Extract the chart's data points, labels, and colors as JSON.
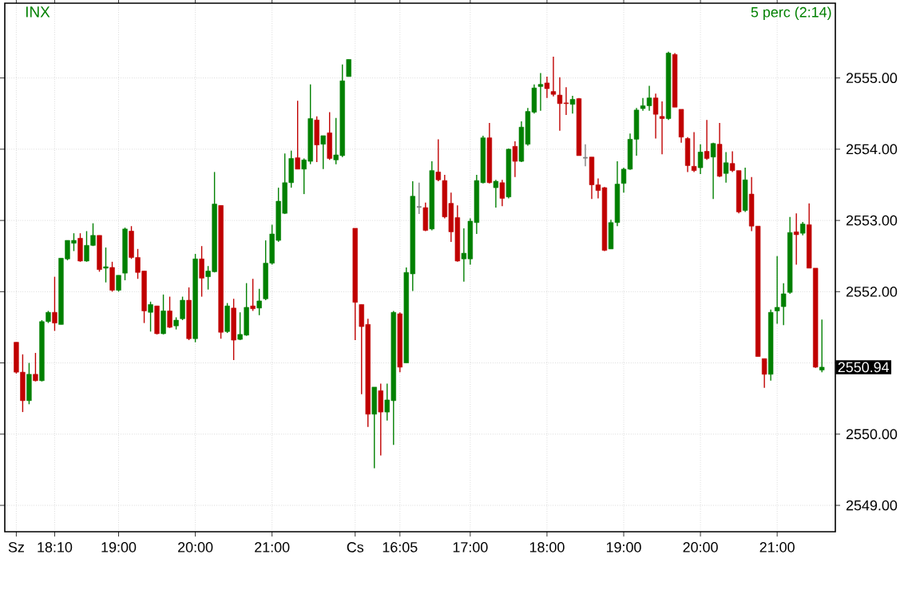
{
  "chart_data": {
    "type": "candlestick",
    "title": "INX",
    "subtitle": "5 perc (2:14)",
    "categories": [
      "Sz",
      null,
      null,
      null,
      null,
      null,
      "18:10",
      null,
      null,
      null,
      null,
      null,
      null,
      null,
      null,
      null,
      "19:00",
      null,
      null,
      null,
      null,
      null,
      null,
      null,
      null,
      null,
      null,
      null,
      "20:00",
      null,
      null,
      null,
      null,
      null,
      null,
      null,
      null,
      null,
      null,
      null,
      "21:00",
      null,
      null,
      null,
      null,
      null,
      null,
      null,
      null,
      null,
      null,
      null,
      null,
      "Cs",
      null,
      null,
      null,
      null,
      null,
      null,
      "16:05",
      null,
      null,
      null,
      null,
      null,
      null,
      null,
      null,
      null,
      null,
      "17:00",
      null,
      null,
      null,
      null,
      null,
      null,
      null,
      null,
      null,
      null,
      null,
      "18:00",
      null,
      null,
      null,
      null,
      null,
      null,
      null,
      null,
      null,
      null,
      null,
      "19:00",
      null,
      null,
      null,
      null,
      null,
      null,
      null,
      null,
      null,
      null,
      null,
      "20:00",
      null,
      null,
      null,
      null,
      null,
      null,
      null,
      null,
      null,
      null,
      null,
      "21:00",
      null,
      null,
      null,
      null,
      null,
      null,
      null
    ],
    "ohlc": [
      [
        2551.29,
        2551.29,
        2550.85,
        2550.87
      ],
      [
        2550.87,
        2551.12,
        2550.31,
        2550.47
      ],
      [
        2550.47,
        2551.0,
        2550.42,
        2550.84
      ],
      [
        2550.84,
        2551.14,
        2550.74,
        2550.75
      ],
      [
        2550.75,
        2551.6,
        2550.74,
        2551.58
      ],
      [
        2551.58,
        2551.73,
        2551.56,
        2551.71
      ],
      [
        2551.71,
        2552.21,
        2551.45,
        2551.56
      ],
      [
        2551.54,
        2552.47,
        2551.54,
        2552.47
      ],
      [
        2552.46,
        2552.72,
        2552.44,
        2552.72
      ],
      [
        2552.68,
        2552.82,
        2552.57,
        2552.72
      ],
      [
        2552.75,
        2552.82,
        2552.42,
        2552.43
      ],
      [
        2552.43,
        2552.85,
        2552.42,
        2552.65
      ],
      [
        2552.65,
        2552.96,
        2552.64,
        2552.79
      ],
      [
        2552.79,
        2552.79,
        2552.28,
        2552.31
      ],
      [
        2552.33,
        2552.62,
        2552.13,
        2552.35
      ],
      [
        2552.34,
        2552.42,
        2552.0,
        2552.02
      ],
      [
        2552.02,
        2552.23,
        2552.0,
        2552.23
      ],
      [
        2552.26,
        2552.9,
        2552.16,
        2552.88
      ],
      [
        2552.85,
        2552.92,
        2552.46,
        2552.48
      ],
      [
        2552.48,
        2552.6,
        2552.18,
        2552.27
      ],
      [
        2552.29,
        2552.29,
        2551.56,
        2551.73
      ],
      [
        2551.71,
        2551.86,
        2551.44,
        2551.82
      ],
      [
        2551.8,
        2551.8,
        2551.4,
        2551.41
      ],
      [
        2551.41,
        2551.96,
        2551.4,
        2551.73
      ],
      [
        2551.73,
        2551.93,
        2551.49,
        2551.5
      ],
      [
        2551.52,
        2551.64,
        2551.47,
        2551.6
      ],
      [
        2551.62,
        2551.93,
        2551.6,
        2551.88
      ],
      [
        2551.88,
        2552.06,
        2551.32,
        2551.34
      ],
      [
        2551.34,
        2552.53,
        2551.29,
        2552.46
      ],
      [
        2552.46,
        2552.64,
        2551.93,
        2552.19
      ],
      [
        2552.21,
        2552.36,
        2552.03,
        2552.29
      ],
      [
        2552.28,
        2553.68,
        2552.27,
        2553.23
      ],
      [
        2553.21,
        2553.21,
        2551.34,
        2551.43
      ],
      [
        2551.44,
        2551.84,
        2551.42,
        2551.8
      ],
      [
        2551.77,
        2551.9,
        2551.04,
        2551.32
      ],
      [
        2551.33,
        2551.71,
        2551.32,
        2551.4
      ],
      [
        2551.39,
        2552.12,
        2551.38,
        2551.78
      ],
      [
        2551.8,
        2552.18,
        2551.73,
        2551.76
      ],
      [
        2551.77,
        2552.04,
        2551.67,
        2551.87
      ],
      [
        2551.9,
        2552.72,
        2551.88,
        2552.4
      ],
      [
        2552.4,
        2552.94,
        2552.38,
        2552.81
      ],
      [
        2552.72,
        2553.46,
        2552.7,
        2553.27
      ],
      [
        2553.1,
        2553.94,
        2553.09,
        2553.53
      ],
      [
        2553.53,
        2553.98,
        2553.46,
        2553.87
      ],
      [
        2553.88,
        2554.68,
        2553.72,
        2553.72
      ],
      [
        2553.72,
        2553.87,
        2553.37,
        2553.85
      ],
      [
        2553.83,
        2554.91,
        2553.79,
        2554.43
      ],
      [
        2554.41,
        2554.46,
        2553.82,
        2554.06
      ],
      [
        2554.07,
        2554.19,
        2553.72,
        2554.19
      ],
      [
        2554.23,
        2554.52,
        2553.85,
        2553.87
      ],
      [
        2553.85,
        2554.44,
        2553.79,
        2553.92
      ],
      [
        2553.91,
        2555.19,
        2553.89,
        2554.96
      ],
      [
        2555.02,
        2555.26,
        2555.02,
        2555.26
      ],
      [
        2552.89,
        2552.89,
        2551.32,
        2551.85
      ],
      [
        2551.82,
        2551.82,
        2550.56,
        2551.51
      ],
      [
        2551.54,
        2551.62,
        2550.1,
        2550.28
      ],
      [
        2550.28,
        2550.66,
        2549.52,
        2550.66
      ],
      [
        2550.61,
        2550.71,
        2549.7,
        2550.31
      ],
      [
        2550.31,
        2550.71,
        2550.19,
        2550.48
      ],
      [
        2550.47,
        2551.73,
        2549.85,
        2551.71
      ],
      [
        2551.69,
        2551.71,
        2550.87,
        2550.94
      ],
      [
        2551.0,
        2552.34,
        2551.0,
        2552.27
      ],
      [
        2552.25,
        2553.55,
        2552.01,
        2553.34
      ],
      [
        2553.19,
        2553.53,
        2553.09,
        2553.19
      ],
      [
        2553.18,
        2553.25,
        2552.85,
        2552.86
      ],
      [
        2552.88,
        2553.83,
        2552.86,
        2553.7
      ],
      [
        2553.68,
        2554.14,
        2553.55,
        2553.57
      ],
      [
        2553.56,
        2553.64,
        2553.03,
        2553.05
      ],
      [
        2553.24,
        2553.39,
        2552.7,
        2552.84
      ],
      [
        2553.04,
        2553.21,
        2552.42,
        2552.43
      ],
      [
        2552.46,
        2552.89,
        2552.14,
        2552.54
      ],
      [
        2552.46,
        2553.03,
        2552.38,
        2552.99
      ],
      [
        2552.97,
        2553.64,
        2552.81,
        2553.56
      ],
      [
        2553.53,
        2554.19,
        2553.52,
        2554.16
      ],
      [
        2554.16,
        2554.37,
        2553.52,
        2553.53
      ],
      [
        2553.46,
        2553.57,
        2553.18,
        2553.55
      ],
      [
        2553.53,
        2553.57,
        2553.2,
        2553.31
      ],
      [
        2553.33,
        2554.01,
        2553.31,
        2554.0
      ],
      [
        2554.04,
        2554.11,
        2553.61,
        2553.83
      ],
      [
        2553.83,
        2554.39,
        2553.82,
        2554.31
      ],
      [
        2554.07,
        2554.58,
        2554.05,
        2554.53
      ],
      [
        2554.52,
        2554.91,
        2554.5,
        2554.86
      ],
      [
        2554.88,
        2555.07,
        2554.54,
        2554.91
      ],
      [
        2554.93,
        2555.02,
        2554.72,
        2554.85
      ],
      [
        2554.81,
        2555.3,
        2554.74,
        2554.77
      ],
      [
        2554.76,
        2555.01,
        2554.26,
        2554.64
      ],
      [
        2554.65,
        2554.87,
        2554.48,
        2554.64
      ],
      [
        2554.63,
        2554.75,
        2554.5,
        2554.7
      ],
      [
        2554.71,
        2554.72,
        2553.91,
        2553.91
      ],
      [
        2553.88,
        2554.07,
        2553.76,
        2553.88
      ],
      [
        2553.89,
        2553.89,
        2553.3,
        2553.5
      ],
      [
        2553.5,
        2553.59,
        2553.31,
        2553.42
      ],
      [
        2553.46,
        2553.47,
        2552.57,
        2552.58
      ],
      [
        2552.6,
        2553.01,
        2552.6,
        2552.97
      ],
      [
        2552.97,
        2553.83,
        2552.92,
        2553.51
      ],
      [
        2553.52,
        2553.74,
        2553.39,
        2553.72
      ],
      [
        2553.72,
        2554.22,
        2553.71,
        2554.14
      ],
      [
        2554.14,
        2554.58,
        2553.91,
        2554.55
      ],
      [
        2554.57,
        2554.72,
        2554.54,
        2554.61
      ],
      [
        2554.61,
        2554.89,
        2554.54,
        2554.72
      ],
      [
        2554.72,
        2554.78,
        2554.15,
        2554.49
      ],
      [
        2554.46,
        2554.67,
        2553.93,
        2554.43
      ],
      [
        2554.43,
        2555.37,
        2554.41,
        2555.35
      ],
      [
        2555.33,
        2555.35,
        2554.59,
        2554.59
      ],
      [
        2554.56,
        2554.56,
        2554.09,
        2554.17
      ],
      [
        2554.15,
        2554.17,
        2553.68,
        2553.77
      ],
      [
        2553.76,
        2554.24,
        2553.68,
        2553.7
      ],
      [
        2553.74,
        2554.07,
        2553.65,
        2553.96
      ],
      [
        2553.97,
        2554.41,
        2553.85,
        2553.87
      ],
      [
        2553.89,
        2554.09,
        2553.3,
        2554.08
      ],
      [
        2554.07,
        2554.37,
        2553.61,
        2553.62
      ],
      [
        2553.66,
        2553.96,
        2553.53,
        2553.81
      ],
      [
        2553.8,
        2553.97,
        2553.68,
        2553.7
      ],
      [
        2553.7,
        2553.7,
        2553.1,
        2553.12
      ],
      [
        2553.14,
        2553.74,
        2553.12,
        2553.57
      ],
      [
        2553.37,
        2553.61,
        2552.85,
        2552.92
      ],
      [
        2552.92,
        2552.92,
        2551.09,
        2551.09
      ],
      [
        2551.06,
        2551.06,
        2550.65,
        2550.84
      ],
      [
        2550.84,
        2551.75,
        2550.75,
        2551.71
      ],
      [
        2551.73,
        2552.5,
        2551.55,
        2551.78
      ],
      [
        2551.79,
        2552.12,
        2551.53,
        2551.97
      ],
      [
        2551.99,
        2553.05,
        2551.97,
        2552.83
      ],
      [
        2552.84,
        2553.1,
        2552.38,
        2552.8
      ],
      [
        2552.82,
        2552.98,
        2552.79,
        2552.95
      ],
      [
        2552.94,
        2553.24,
        2552.33,
        2552.33
      ],
      [
        2552.33,
        2552.33,
        2550.93,
        2550.94
      ],
      [
        2550.9,
        2551.61,
        2550.87,
        2550.94
      ]
    ],
    "colors": [
      "#c00000",
      "#c00000",
      "#008000",
      "#c00000",
      "#008000",
      "#008000",
      "#c00000",
      "#008000",
      "#008000",
      "#008000",
      "#c00000",
      "#008000",
      "#008000",
      "#c00000",
      "#008000",
      "#c00000",
      "#008000",
      "#008000",
      "#c00000",
      "#c00000",
      "#c00000",
      "#008000",
      "#c00000",
      "#008000",
      "#c00000",
      "#008000",
      "#008000",
      "#c00000",
      "#008000",
      "#c00000",
      "#008000",
      "#008000",
      "#c00000",
      "#008000",
      "#c00000",
      "#008000",
      "#008000",
      "#c00000",
      "#008000",
      "#008000",
      "#008000",
      "#008000",
      "#008000",
      "#008000",
      "#c00000",
      "#008000",
      "#008000",
      "#c00000",
      "#008000",
      "#c00000",
      "#008000",
      "#008000",
      "#008000",
      "#c00000",
      "#c00000",
      "#c00000",
      "#008000",
      "#c00000",
      "#008000",
      "#008000",
      "#c00000",
      "#008000",
      "#008000",
      "#808080",
      "#c00000",
      "#008000",
      "#c00000",
      "#c00000",
      "#c00000",
      "#c00000",
      "#008000",
      "#008000",
      "#008000",
      "#008000",
      "#c00000",
      "#008000",
      "#c00000",
      "#008000",
      "#c00000",
      "#008000",
      "#008000",
      "#008000",
      "#008000",
      "#c00000",
      "#c00000",
      "#c00000",
      "#c00000",
      "#008000",
      "#c00000",
      "#808080",
      "#c00000",
      "#c00000",
      "#c00000",
      "#008000",
      "#008000",
      "#008000",
      "#008000",
      "#008000",
      "#008000",
      "#008000",
      "#c00000",
      "#c00000",
      "#008000",
      "#c00000",
      "#c00000",
      "#c00000",
      "#c00000",
      "#008000",
      "#c00000",
      "#008000",
      "#c00000",
      "#008000",
      "#c00000",
      "#c00000",
      "#008000",
      "#c00000",
      "#c00000",
      "#c00000",
      "#008000",
      "#008000",
      "#008000",
      "#008000",
      "#c00000",
      "#008000",
      "#c00000",
      "#c00000",
      "#008000"
    ],
    "ylim": [
      2548.63,
      2556.05
    ],
    "yticks": [
      {
        "value": 2549,
        "label": "2549.00"
      },
      {
        "value": 2550,
        "label": "2550.00"
      },
      {
        "value": 2551,
        "label": null
      },
      {
        "value": 2552,
        "label": "2552.00"
      },
      {
        "value": 2553,
        "label": "2553.00"
      },
      {
        "value": 2554,
        "label": "2554.00"
      },
      {
        "value": 2555,
        "label": "2555.00"
      }
    ],
    "annotations": [
      "2550.94"
    ],
    "grid": true
  }
}
